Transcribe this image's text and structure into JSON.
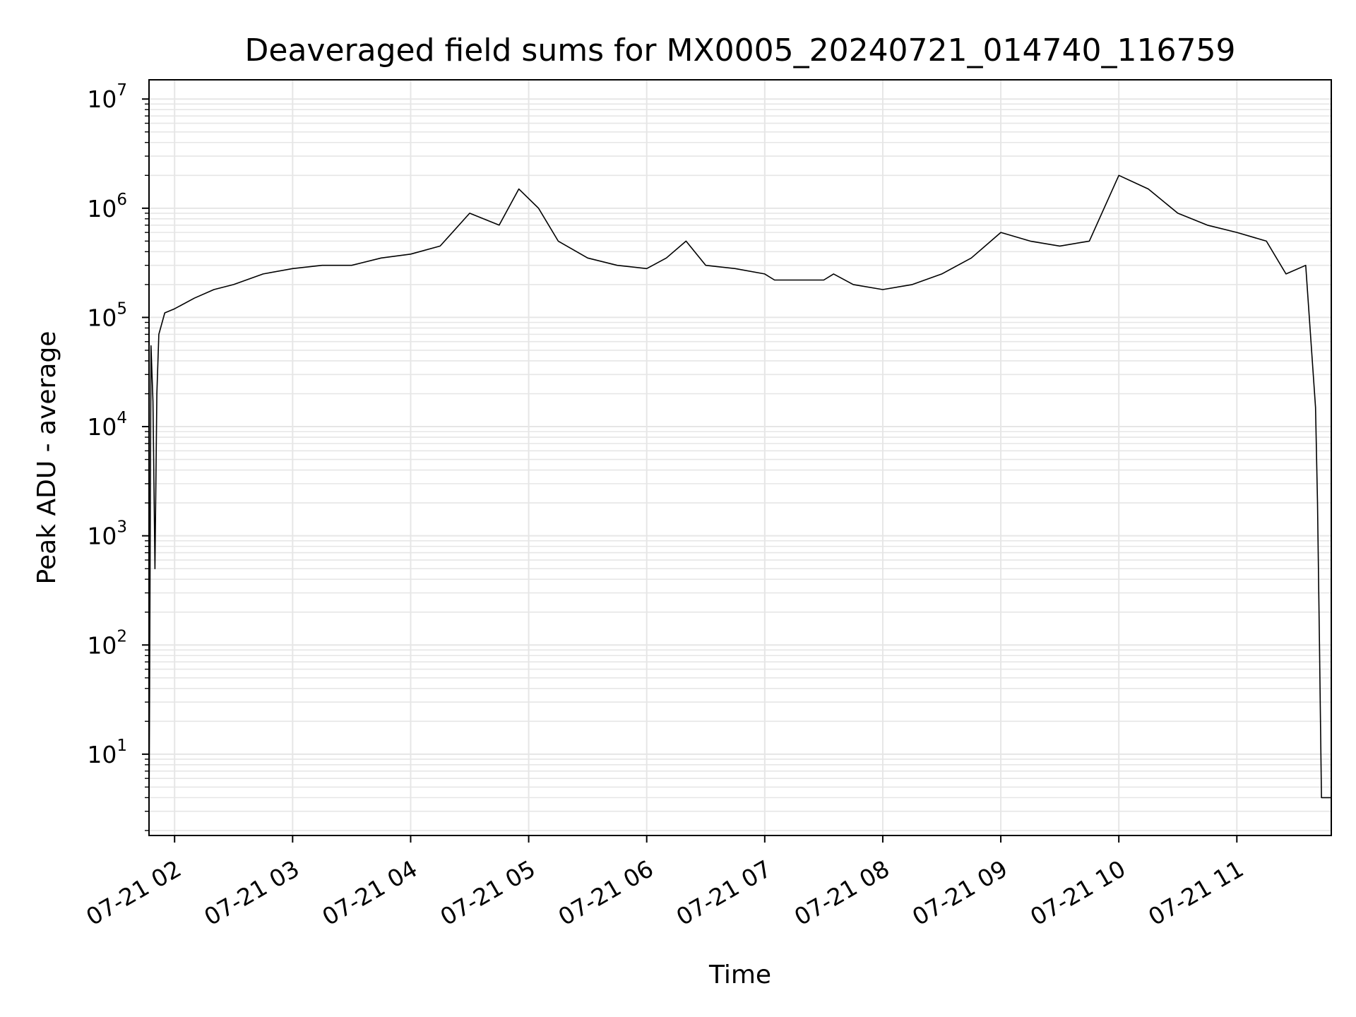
{
  "chart_data": {
    "type": "line",
    "title": "Deaveraged field sums for MX0005_20240721_014740_116759",
    "xlabel": "Time",
    "ylabel": "Peak ADU - average",
    "yscale": "log",
    "ylim": [
      1.8,
      15000000
    ],
    "xlim": [
      "07-21 01:47",
      "07-21 11:48"
    ],
    "grid": true,
    "line_color": "#000000",
    "grid_color": "#e6e6e6",
    "x_ticks": [
      {
        "label": "07-21 02",
        "time": "07-21 02:00"
      },
      {
        "label": "07-21 03",
        "time": "07-21 03:00"
      },
      {
        "label": "07-21 04",
        "time": "07-21 04:00"
      },
      {
        "label": "07-21 05",
        "time": "07-21 05:00"
      },
      {
        "label": "07-21 06",
        "time": "07-21 06:00"
      },
      {
        "label": "07-21 07",
        "time": "07-21 07:00"
      },
      {
        "label": "07-21 08",
        "time": "07-21 08:00"
      },
      {
        "label": "07-21 09",
        "time": "07-21 09:00"
      },
      {
        "label": "07-21 10",
        "time": "07-21 10:00"
      },
      {
        "label": "07-21 11",
        "time": "07-21 11:00"
      }
    ],
    "y_ticks": [
      {
        "base": "10",
        "exp": "1",
        "value": 10
      },
      {
        "base": "10",
        "exp": "2",
        "value": 100
      },
      {
        "base": "10",
        "exp": "3",
        "value": 1000
      },
      {
        "base": "10",
        "exp": "4",
        "value": 10000
      },
      {
        "base": "10",
        "exp": "5",
        "value": 100000
      },
      {
        "base": "10",
        "exp": "6",
        "value": 1000000
      },
      {
        "base": "10",
        "exp": "7",
        "value": 10000000
      }
    ],
    "series": [
      {
        "points": [
          [
            "07-21 01:47",
            2
          ],
          [
            "07-21 01:48",
            55000
          ],
          [
            "07-21 01:49",
            17000
          ],
          [
            "07-21 01:50",
            500
          ],
          [
            "07-21 01:51",
            20000
          ],
          [
            "07-21 01:52",
            70000
          ],
          [
            "07-21 01:55",
            110000
          ],
          [
            "07-21 02:00",
            120000
          ],
          [
            "07-21 02:10",
            150000
          ],
          [
            "07-21 02:20",
            180000
          ],
          [
            "07-21 02:30",
            200000
          ],
          [
            "07-21 02:45",
            250000
          ],
          [
            "07-21 03:00",
            280000
          ],
          [
            "07-21 03:15",
            300000
          ],
          [
            "07-21 03:30",
            300000
          ],
          [
            "07-21 03:45",
            350000
          ],
          [
            "07-21 04:00",
            380000
          ],
          [
            "07-21 04:15",
            450000
          ],
          [
            "07-21 04:30",
            900000
          ],
          [
            "07-21 04:45",
            700000
          ],
          [
            "07-21 04:55",
            1500000
          ],
          [
            "07-21 05:05",
            1000000
          ],
          [
            "07-21 05:15",
            500000
          ],
          [
            "07-21 05:30",
            350000
          ],
          [
            "07-21 05:45",
            300000
          ],
          [
            "07-21 06:00",
            280000
          ],
          [
            "07-21 06:10",
            350000
          ],
          [
            "07-21 06:20",
            500000
          ],
          [
            "07-21 06:30",
            300000
          ],
          [
            "07-21 06:45",
            280000
          ],
          [
            "07-21 07:00",
            250000
          ],
          [
            "07-21 07:05",
            220000
          ],
          [
            "07-21 07:30",
            220000
          ],
          [
            "07-21 07:35",
            250000
          ],
          [
            "07-21 07:45",
            200000
          ],
          [
            "07-21 08:00",
            180000
          ],
          [
            "07-21 08:15",
            200000
          ],
          [
            "07-21 08:30",
            250000
          ],
          [
            "07-21 08:45",
            350000
          ],
          [
            "07-21 09:00",
            600000
          ],
          [
            "07-21 09:15",
            500000
          ],
          [
            "07-21 09:30",
            450000
          ],
          [
            "07-21 09:45",
            500000
          ],
          [
            "07-21 10:00",
            2000000
          ],
          [
            "07-21 10:15",
            1500000
          ],
          [
            "07-21 10:30",
            900000
          ],
          [
            "07-21 10:45",
            700000
          ],
          [
            "07-21 11:00",
            600000
          ],
          [
            "07-21 11:15",
            500000
          ],
          [
            "07-21 11:25",
            250000
          ],
          [
            "07-21 11:35",
            300000
          ],
          [
            "07-21 11:38",
            50000
          ],
          [
            "07-21 11:40",
            15000
          ],
          [
            "07-21 11:41",
            2000
          ],
          [
            "07-21 11:42",
            100
          ],
          [
            "07-21 11:43",
            4
          ],
          [
            "07-21 11:48",
            4
          ]
        ]
      }
    ]
  }
}
